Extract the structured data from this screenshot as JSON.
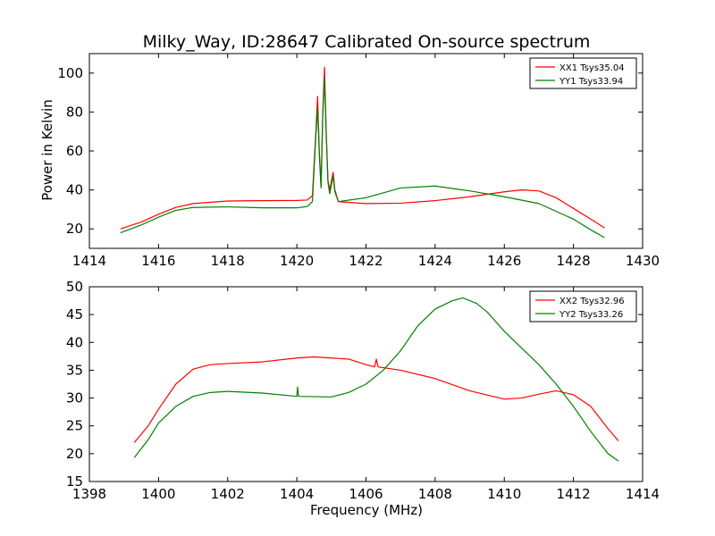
{
  "chart_data": [
    {
      "type": "line",
      "title": "Milky_Way, ID:28647 Calibrated On-source spectrum",
      "xlabel": "",
      "ylabel": "Power in Kelvin",
      "xlim": [
        1414,
        1430
      ],
      "ylim": [
        10,
        110
      ],
      "xticks": [
        1414,
        1416,
        1418,
        1420,
        1422,
        1424,
        1426,
        1428,
        1430
      ],
      "yticks": [
        20,
        40,
        60,
        80,
        100
      ],
      "grid": false,
      "legend_position": "top-right",
      "series": [
        {
          "name": "XX1 Tsys35.04",
          "color": "#ff0000",
          "points": [
            [
              1414.9,
              20
            ],
            [
              1415.5,
              23.5
            ],
            [
              1416,
              27.5
            ],
            [
              1416.5,
              31
            ],
            [
              1417,
              33
            ],
            [
              1418,
              34.3
            ],
            [
              1419,
              34.5
            ],
            [
              1420,
              34.6
            ],
            [
              1420.3,
              34.8
            ],
            [
              1420.45,
              37
            ],
            [
              1420.55,
              70
            ],
            [
              1420.6,
              88
            ],
            [
              1420.65,
              60
            ],
            [
              1420.7,
              42
            ],
            [
              1420.75,
              80
            ],
            [
              1420.8,
              103
            ],
            [
              1420.85,
              70
            ],
            [
              1420.9,
              45
            ],
            [
              1420.95,
              40
            ],
            [
              1421.05,
              49
            ],
            [
              1421.1,
              40
            ],
            [
              1421.2,
              34
            ],
            [
              1422,
              33
            ],
            [
              1423,
              33.2
            ],
            [
              1424,
              34.5
            ],
            [
              1425,
              36.5
            ],
            [
              1426,
              39
            ],
            [
              1426.5,
              40
            ],
            [
              1427,
              39.5
            ],
            [
              1427.5,
              36
            ],
            [
              1428,
              30.5
            ],
            [
              1428.5,
              25
            ],
            [
              1428.9,
              20.5
            ]
          ]
        },
        {
          "name": "YY1 Tsys33.94",
          "color": "#008000",
          "points": [
            [
              1414.9,
              18
            ],
            [
              1415.5,
              22
            ],
            [
              1416,
              26
            ],
            [
              1416.5,
              29.5
            ],
            [
              1417,
              31
            ],
            [
              1418,
              31.3
            ],
            [
              1419,
              30.8
            ],
            [
              1420,
              30.8
            ],
            [
              1420.3,
              31.5
            ],
            [
              1420.45,
              34
            ],
            [
              1420.55,
              68
            ],
            [
              1420.6,
              82
            ],
            [
              1420.65,
              58
            ],
            [
              1420.7,
              41
            ],
            [
              1420.75,
              78
            ],
            [
              1420.8,
              97
            ],
            [
              1420.85,
              68
            ],
            [
              1420.9,
              44
            ],
            [
              1420.95,
              38
            ],
            [
              1421.05,
              47
            ],
            [
              1421.1,
              39
            ],
            [
              1421.2,
              34
            ],
            [
              1422,
              36
            ],
            [
              1423,
              41
            ],
            [
              1424,
              42
            ],
            [
              1425,
              39.5
            ],
            [
              1426,
              36.5
            ],
            [
              1427,
              33
            ],
            [
              1428,
              25
            ],
            [
              1428.5,
              19.5
            ],
            [
              1428.9,
              15.5
            ]
          ]
        }
      ]
    },
    {
      "type": "line",
      "title": "",
      "xlabel": "Frequency (MHz)",
      "ylabel": "",
      "xlim": [
        1398,
        1414
      ],
      "ylim": [
        15,
        50
      ],
      "xticks": [
        1398,
        1400,
        1402,
        1404,
        1406,
        1408,
        1410,
        1412,
        1414
      ],
      "yticks": [
        15,
        20,
        25,
        30,
        35,
        40,
        45,
        50
      ],
      "grid": false,
      "legend_position": "top-right",
      "series": [
        {
          "name": "XX2 Tsys32.96",
          "color": "#ff0000",
          "points": [
            [
              1399.3,
              22
            ],
            [
              1399.7,
              25
            ],
            [
              1400,
              28
            ],
            [
              1400.5,
              32.5
            ],
            [
              1401,
              35.2
            ],
            [
              1401.5,
              36
            ],
            [
              1402,
              36.2
            ],
            [
              1403,
              36.5
            ],
            [
              1404,
              37.2
            ],
            [
              1404.5,
              37.4
            ],
            [
              1405,
              37.2
            ],
            [
              1405.5,
              37
            ],
            [
              1406,
              36
            ],
            [
              1406.25,
              35.6
            ],
            [
              1406.3,
              37
            ],
            [
              1406.35,
              35.6
            ],
            [
              1407,
              35
            ],
            [
              1408,
              33.5
            ],
            [
              1409,
              31.3
            ],
            [
              1410,
              29.8
            ],
            [
              1410.5,
              30
            ],
            [
              1411,
              30.7
            ],
            [
              1411.5,
              31.3
            ],
            [
              1412,
              30.6
            ],
            [
              1412.5,
              28.5
            ],
            [
              1413,
              24.5
            ],
            [
              1413.3,
              22.3
            ]
          ]
        },
        {
          "name": "YY2 Tsys33.26",
          "color": "#008000",
          "points": [
            [
              1399.3,
              19.3
            ],
            [
              1399.7,
              22.5
            ],
            [
              1400,
              25.5
            ],
            [
              1400.5,
              28.5
            ],
            [
              1401,
              30.3
            ],
            [
              1401.5,
              31
            ],
            [
              1402,
              31.2
            ],
            [
              1403,
              30.9
            ],
            [
              1404,
              30.3
            ],
            [
              1404.02,
              32
            ],
            [
              1404.05,
              30.3
            ],
            [
              1405,
              30.2
            ],
            [
              1405.5,
              31
            ],
            [
              1406,
              32.5
            ],
            [
              1406.5,
              35
            ],
            [
              1407,
              38.5
            ],
            [
              1407.5,
              43
            ],
            [
              1408,
              46
            ],
            [
              1408.5,
              47.5
            ],
            [
              1408.8,
              48
            ],
            [
              1409.2,
              47
            ],
            [
              1409.5,
              45.5
            ],
            [
              1410,
              42
            ],
            [
              1410.5,
              39
            ],
            [
              1411,
              36
            ],
            [
              1411.5,
              32.5
            ],
            [
              1412,
              28.5
            ],
            [
              1412.5,
              24
            ],
            [
              1413,
              20
            ],
            [
              1413.3,
              18.7
            ]
          ]
        }
      ]
    }
  ]
}
